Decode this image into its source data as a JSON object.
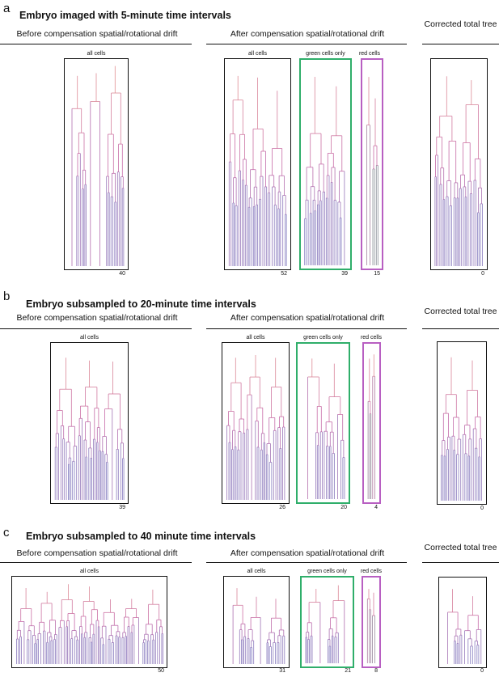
{
  "panels": [
    {
      "letter": "a",
      "title": "Embryo imaged with 5-minute time intervals",
      "before_heading": "Before compensation spatial/rotational drift",
      "after_heading": "After compensation spatial/rotational drift",
      "corrected_heading": "Corrected total tree",
      "boxes": [
        {
          "label": "all cells",
          "count": "40",
          "style": "plain",
          "palette": "mix"
        },
        {
          "label": "all cells",
          "count": "52",
          "style": "plain",
          "palette": "mix"
        },
        {
          "label": "green cells only",
          "count": "39",
          "style": "green",
          "palette": "mix"
        },
        {
          "label": "red cells",
          "count": "15",
          "style": "purple",
          "palette": "red"
        },
        {
          "label": "",
          "count": "0",
          "style": "plain",
          "palette": "mix"
        }
      ]
    },
    {
      "letter": "b",
      "title": "Embryo subsampled to 20-minute time intervals",
      "before_heading": "Before compensation spatial/rotational drift",
      "after_heading": "After compensation spatial/rotational drift",
      "corrected_heading": "Corrected total tree",
      "boxes": [
        {
          "label": "all cells",
          "count": "39",
          "style": "plain",
          "palette": "mix"
        },
        {
          "label": "all cells",
          "count": "26",
          "style": "plain",
          "palette": "mix"
        },
        {
          "label": "green cells only",
          "count": "20",
          "style": "green",
          "palette": "mix"
        },
        {
          "label": "red cells",
          "count": "4",
          "style": "purple",
          "palette": "red"
        },
        {
          "label": "",
          "count": "0",
          "style": "plain",
          "palette": "mix"
        }
      ]
    },
    {
      "letter": "c",
      "title": "Embryo subsampled to 40 minute time intervals",
      "before_heading": "Before compensation spatial/rotational drift",
      "after_heading": "After compensation spatial/rotational drift",
      "corrected_heading": "Corrected total tree",
      "boxes": [
        {
          "label": "all cells",
          "count": "50",
          "style": "plain",
          "palette": "mix"
        },
        {
          "label": "all cells",
          "count": "31",
          "style": "plain",
          "palette": "mix"
        },
        {
          "label": "green cells only",
          "count": "21",
          "style": "green",
          "palette": "mix"
        },
        {
          "label": "red cells",
          "count": "8",
          "style": "purple",
          "palette": "red"
        },
        {
          "label": "",
          "count": "0",
          "style": "plain",
          "palette": "mix"
        }
      ]
    }
  ],
  "colors": {
    "top": "#e89a8f",
    "middle": "#c66aa8",
    "bottom": "#6d84c9",
    "green_bottom": "#4fb98a"
  }
}
